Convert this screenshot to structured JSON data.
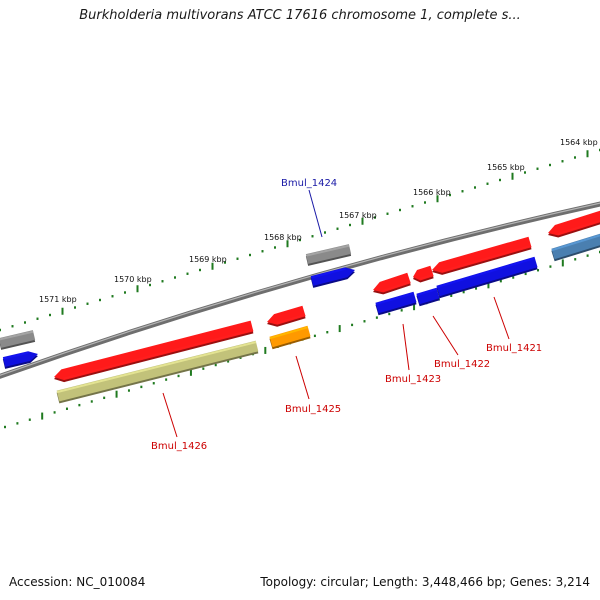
{
  "title": "Burkholderia multivorans ATCC 17616 chromosome 1, complete s...",
  "footer": {
    "accession": "Accession: NC_010084",
    "summary": "Topology: circular; Length: 3,448,466 bp; Genes: 3,214"
  },
  "scale_labels": [
    "1571 kbp",
    "1570 kbp",
    "1569 kbp",
    "1568 kbp",
    "1567 kbp",
    "1566 kbp",
    "1565 kbp",
    "1564 kbp"
  ],
  "gene_labels": {
    "bmul_1424": "Bmul_1424",
    "bmul_1426": "Bmul_1426",
    "bmul_1425": "Bmul_1425",
    "bmul_1423": "Bmul_1423",
    "bmul_1422": "Bmul_1422",
    "bmul_1421": "Bmul_1421"
  },
  "colors": {
    "backbone": "#707070",
    "tick": "#1f7a1f",
    "feature_red": "#ff1a1a",
    "feature_blue": "#1010e0",
    "feature_gray": "#8a8a8a",
    "feature_orange": "#ff9900",
    "feature_olive": "#c2c27a",
    "feature_steel": "#4a7fb0",
    "label_blue": "#1a1aa6",
    "label_red": "#cc0000"
  }
}
